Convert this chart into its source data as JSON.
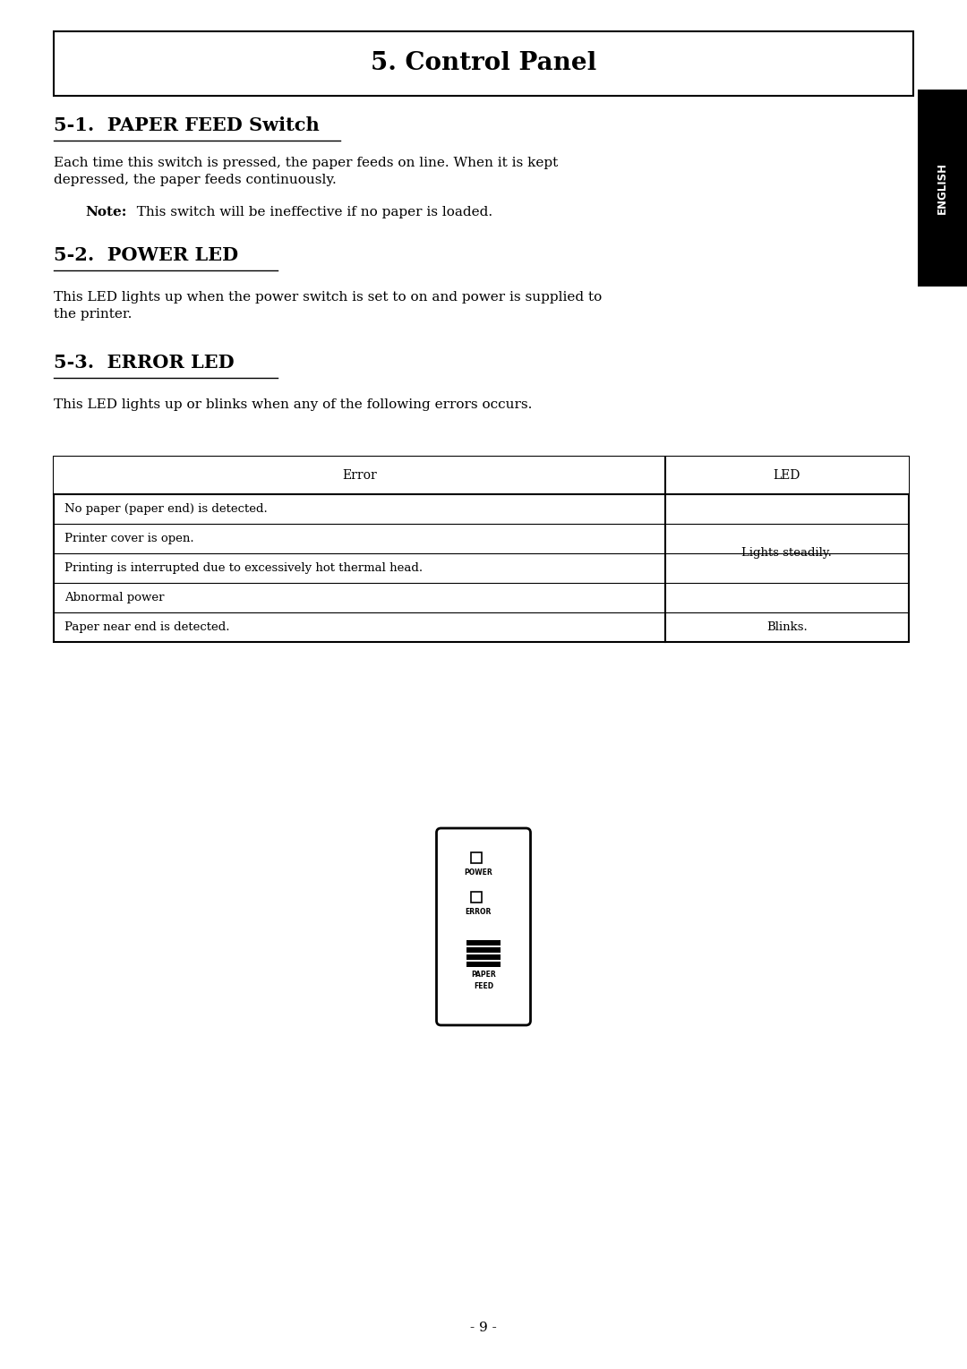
{
  "title": "5. Control Panel",
  "section1_heading": "5-1.  PAPER FEED Switch",
  "section1_body": "Each time this switch is pressed, the paper feeds on line. When it is kept\ndepressed, the paper feeds continuously.",
  "section1_note": "Note:  This switch will be ineffective if no paper is loaded.",
  "section2_heading": "5-2.  POWER LED",
  "section2_body": "This LED lights up when the power switch is set to on and power is supplied to\nthe printer.",
  "section3_heading": "5-3.  ERROR LED",
  "section3_body": "This LED lights up or blinks when any of the following errors occurs.",
  "table_header": [
    "Error",
    "LED"
  ],
  "table_rows": [
    [
      "No paper (paper end) is detected.",
      ""
    ],
    [
      "Printer cover is open.",
      ""
    ],
    [
      "Printing is interrupted due to excessively hot thermal head.",
      "Lights steadily."
    ],
    [
      "Abnormal power",
      ""
    ],
    [
      "Paper near end is detected.",
      "Blinks."
    ]
  ],
  "page_number": "- 9 -",
  "sidebar_text": "ENGLISH",
  "bg_color": "#ffffff",
  "text_color": "#000000",
  "sidebar_bg": "#000000",
  "sidebar_text_color": "#ffffff"
}
